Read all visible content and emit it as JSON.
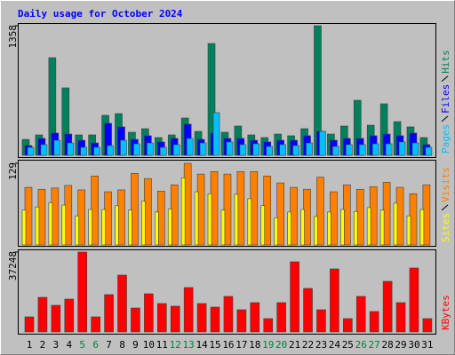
{
  "title": "Daily usage for October 2024",
  "chart_data": [
    {
      "type": "bar",
      "ylim": [
        0,
        1358
      ],
      "yticks": [
        1358
      ],
      "series": [
        {
          "name": "Hits",
          "color": "#00805c",
          "values": [
            167,
            214,
            1023,
            707,
            214,
            214,
            419,
            437,
            242,
            279,
            186,
            214,
            391,
            251,
            1172,
            242,
            307,
            214,
            186,
            223,
            205,
            279,
            1358,
            223,
            307,
            577,
            316,
            540,
            353,
            298,
            186
          ]
        },
        {
          "name": "Files",
          "color": "#0000ff",
          "values": [
            102,
            177,
            233,
            223,
            158,
            130,
            335,
            298,
            167,
            205,
            140,
            177,
            326,
            167,
            233,
            177,
            177,
            158,
            140,
            158,
            158,
            205,
            251,
            158,
            177,
            177,
            205,
            223,
            205,
            233,
            112
          ]
        },
        {
          "name": "Pages",
          "color": "#00c0ff",
          "values": [
            84,
            112,
            158,
            130,
            84,
            84,
            102,
            158,
            121,
            130,
            84,
            112,
            177,
            130,
            447,
            140,
            112,
            121,
            93,
            112,
            102,
            130,
            251,
            93,
            112,
            112,
            121,
            121,
            140,
            130,
            84
          ]
        }
      ]
    },
    {
      "type": "bar",
      "ylim": [
        0,
        129
      ],
      "yticks": [
        129
      ],
      "series": [
        {
          "name": "Visits",
          "color": "#ff8000",
          "values": [
            91,
            88,
            90,
            94,
            87,
            109,
            84,
            87,
            113,
            105,
            85,
            95,
            129,
            112,
            116,
            112,
            116,
            116,
            109,
            98,
            91,
            88,
            107,
            84,
            95,
            88,
            92,
            99,
            91,
            81,
            95
          ]
        },
        {
          "name": "Sites",
          "color": "#ffff00",
          "values": [
            55,
            60,
            67,
            63,
            46,
            56,
            56,
            62,
            55,
            69,
            52,
            57,
            106,
            84,
            81,
            55,
            80,
            73,
            62,
            43,
            52,
            56,
            45,
            52,
            56,
            53,
            59,
            55,
            66,
            46,
            56
          ]
        }
      ]
    },
    {
      "type": "bar",
      "ylim": [
        0,
        37248
      ],
      "yticks": [
        37248
      ],
      "categories": [
        "1",
        "2",
        "3",
        "4",
        "5",
        "6",
        "7",
        "8",
        "9",
        "10",
        "11",
        "12",
        "13",
        "14",
        "15",
        "16",
        "17",
        "18",
        "19",
        "20",
        "21",
        "22",
        "23",
        "24",
        "25",
        "26",
        "27",
        "28",
        "29",
        "30",
        "31"
      ],
      "category_colors": [
        "#000000",
        "#000000",
        "#000000",
        "#000000",
        "#008040",
        "#008040",
        "#000000",
        "#000000",
        "#000000",
        "#000000",
        "#000000",
        "#008040",
        "#008040",
        "#000000",
        "#000000",
        "#000000",
        "#000000",
        "#000000",
        "#008040",
        "#008040",
        "#000000",
        "#000000",
        "#000000",
        "#000000",
        "#000000",
        "#008040",
        "#008040",
        "#000000",
        "#000000",
        "#000000",
        "#000000"
      ],
      "series": [
        {
          "name": "KBytes",
          "color": "#ff0000",
          "values": [
            7040,
            16144,
            12420,
            15318,
            37248,
            7040,
            17388,
            26496,
            11178,
            17802,
            13248,
            12006,
            20700,
            13248,
            11592,
            16560,
            10350,
            13662,
            6210,
            13662,
            32706,
            20286,
            10350,
            29394,
            6210,
            16560,
            9522,
            23598,
            13662,
            29808,
            6210
          ]
        }
      ]
    }
  ]
}
